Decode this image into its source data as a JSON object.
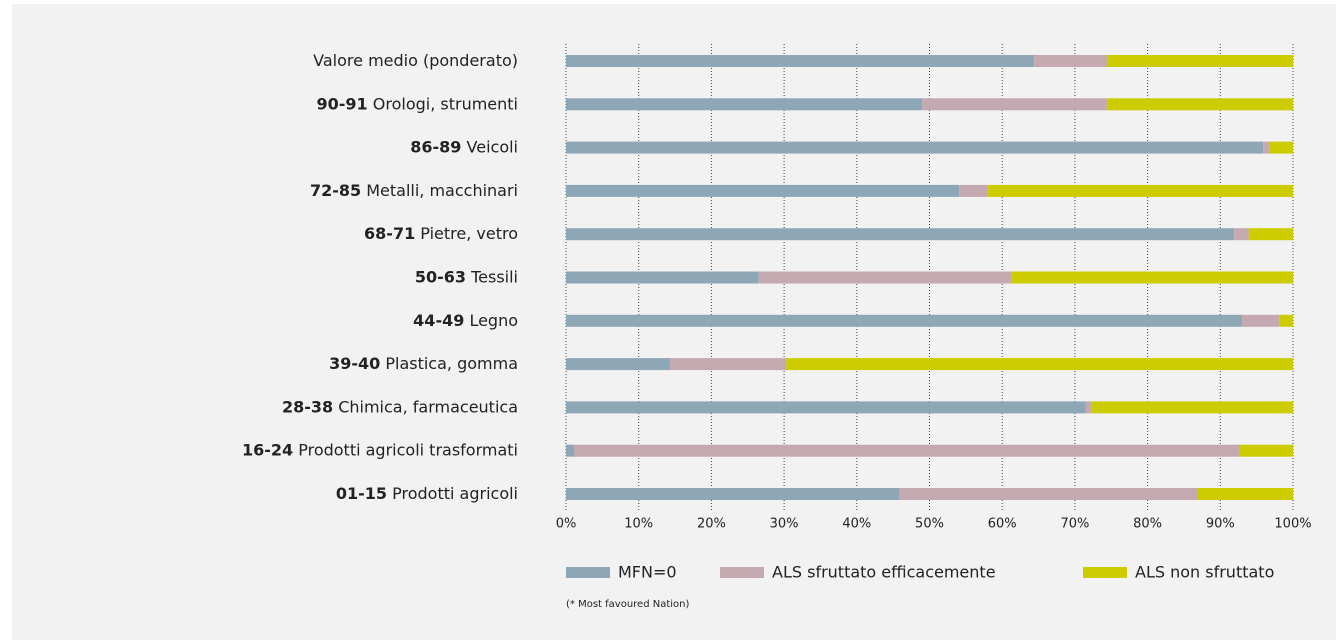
{
  "chart_data": {
    "type": "stacked_barh",
    "categories": [
      "Valore medio (ponderato)",
      "Orologi, strumenti",
      "Veicoli",
      "Metalli, macchinari",
      "Pietre, vetro",
      "Tessili",
      "Legno",
      "Plastica, gomma",
      "Chimica, farmaceutica",
      "Prodotti agricoli trasformati",
      "Prodotti agricoli"
    ],
    "category_codes": [
      null,
      "90-91",
      "86-89",
      "72-85",
      "68-71",
      "50-63",
      "44-49",
      "39-40",
      "28-38",
      "16-24",
      "01-15"
    ],
    "series": [
      {
        "name": "MFN=0",
        "color": "#8ea7b7",
        "values": [
          64.4,
          49,
          95.9,
          54.1,
          91.9,
          26.5,
          93,
          14.3,
          71.5,
          1.1,
          45.9
        ]
      },
      {
        "name": "ALS sfruttato efficacemente",
        "color": "#c5a9b1",
        "values": [
          10,
          25.4,
          0.9,
          3.9,
          2,
          34.8,
          5.1,
          16,
          0.7,
          91.6,
          40.9
        ]
      },
      {
        "name": "ALS non sfruttato",
        "color": "#cccc00",
        "values": [
          25.6,
          25.6,
          3.2,
          42,
          6.1,
          38.7,
          1.9,
          69.7,
          27.8,
          7.3,
          13.2
        ]
      }
    ],
    "xlim": [
      0,
      100
    ],
    "xticks": [
      {
        "value": 0,
        "label": "0%"
      },
      {
        "value": 10,
        "label": "10%"
      },
      {
        "value": 20,
        "label": "20%"
      },
      {
        "value": 30,
        "label": "30%"
      },
      {
        "value": 40,
        "label": "40%"
      },
      {
        "value": 50,
        "label": "50%"
      },
      {
        "value": 60,
        "label": "60%"
      },
      {
        "value": 70,
        "label": "70%"
      },
      {
        "value": 80,
        "label": "80%"
      },
      {
        "value": 90,
        "label": "90%"
      },
      {
        "value": 100,
        "label": "100%"
      }
    ],
    "grid": true,
    "footnote": "(* Most favoured Nation)"
  }
}
